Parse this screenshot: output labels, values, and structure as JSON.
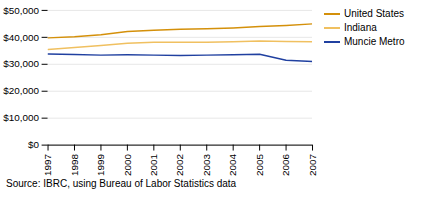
{
  "chart_data": {
    "type": "line",
    "x": [
      1997,
      1998,
      1999,
      2000,
      2001,
      2002,
      2003,
      2004,
      2005,
      2006,
      2007
    ],
    "series": [
      {
        "name": "United States",
        "color": "#D4900A",
        "values": [
          39800,
          40200,
          41000,
          42200,
          42600,
          43000,
          43200,
          43500,
          44000,
          44400,
          45000
        ]
      },
      {
        "name": "Indiana",
        "color": "#F0C060",
        "values": [
          35500,
          36200,
          37000,
          37800,
          38200,
          38200,
          38200,
          38400,
          38600,
          38500,
          38400
        ]
      },
      {
        "name": "Muncie Metro",
        "color": "#2040A0",
        "values": [
          33800,
          33600,
          33400,
          33500,
          33400,
          33300,
          33400,
          33500,
          33700,
          31500,
          31000
        ]
      }
    ],
    "xlim": [
      1997,
      2007
    ],
    "xticks": [
      1997,
      1998,
      1999,
      2000,
      2001,
      2002,
      2003,
      2004,
      2005,
      2006,
      2007
    ],
    "ylim": [
      0,
      50000
    ],
    "yticks": [
      {
        "value": 0,
        "label": "$0"
      },
      {
        "value": 10000,
        "label": "$10,000"
      },
      {
        "value": 20000,
        "label": "$20,000"
      },
      {
        "value": 30000,
        "label": "$30,000"
      },
      {
        "value": 40000,
        "label": "$40,000"
      },
      {
        "value": 50000,
        "label": "$50,000"
      }
    ],
    "grid": "y",
    "legend": "right",
    "caption": "Source: IBRC, using Bureau of Labor Statistics data"
  }
}
